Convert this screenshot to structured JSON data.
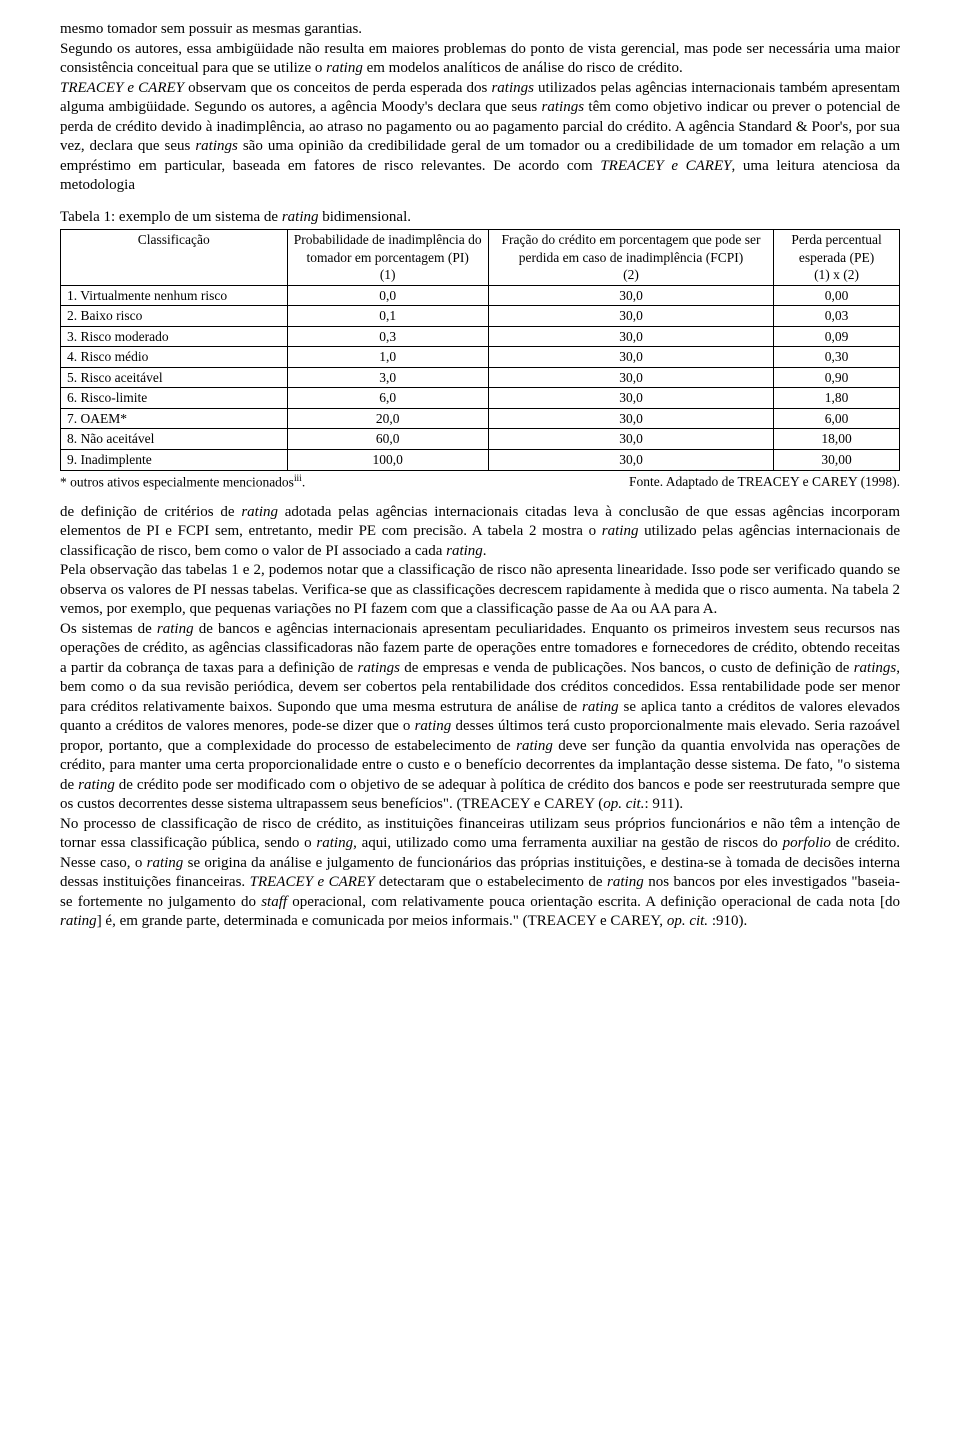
{
  "paragraphs": {
    "p1": "mesmo tomador sem possuir as mesmas garantias.",
    "p2_a": "Segundo os autores, essa ambigüidade não resulta em maiores problemas do ponto de vista gerencial, mas pode ser necessária uma maior consistência conceitual para que se utilize o ",
    "p2_b": "rating",
    "p2_c": " em modelos analíticos de análise do risco de crédito.",
    "p3_a": "TREACEY e CAREY",
    "p3_b": " observam que os conceitos de perda esperada dos ",
    "p3_c": "ratings",
    "p3_d": " utilizados pelas agências internacionais também apresentam alguma ambigüidade. Segundo os autores, a agência Moody's declara que seus ",
    "p3_e": "ratings",
    "p3_f": " têm como objetivo indicar ou prever o potencial de perda de crédito devido à inadimplência, ao atraso no pagamento ou ao pagamento parcial do crédito. A agência Standard & Poor's, por sua vez, declara que seus ",
    "p3_g": "ratings",
    "p3_h": " são uma opinião da credibilidade geral de um tomador ou a credibilidade de um tomador em relação a um empréstimo em particular, baseada em fatores de risco relevantes. De acordo com ",
    "p3_i": "TREACEY e CAREY",
    "p3_j": ", uma leitura atenciosa da metodologia"
  },
  "table": {
    "caption_a": "Tabela 1: exemplo de um sistema de ",
    "caption_b": "rating",
    "caption_c": " bidimensional.",
    "headers": {
      "h1": "Classificação",
      "h2": "Probabilidade de inadimplência do tomador em porcentagem (PI)",
      "h2b": "(1)",
      "h3": "Fração do crédito em porcentagem que pode ser perdida em caso de inadimplência (FCPI)",
      "h3b": "(2)",
      "h4": "Perda percentual esperada (PE)",
      "h4b": "(1) x (2)"
    },
    "rows": [
      {
        "c": "1. Virtualmente nenhum risco",
        "pi": "0,0",
        "fcpi": "30,0",
        "pe": "0,00"
      },
      {
        "c": "2. Baixo risco",
        "pi": "0,1",
        "fcpi": "30,0",
        "pe": "0,03"
      },
      {
        "c": "3. Risco moderado",
        "pi": "0,3",
        "fcpi": "30,0",
        "pe": "0,09"
      },
      {
        "c": "4. Risco médio",
        "pi": "1,0",
        "fcpi": "30,0",
        "pe": "0,30"
      },
      {
        "c": "5. Risco aceitável",
        "pi": "3,0",
        "fcpi": "30,0",
        "pe": "0,90"
      },
      {
        "c": "6. Risco-limite",
        "pi": "6,0",
        "fcpi": "30,0",
        "pe": "1,80"
      },
      {
        "c": "7. OAEM*",
        "pi": "20,0",
        "fcpi": "30,0",
        "pe": "6,00"
      },
      {
        "c": "8. Não aceitável",
        "pi": "60,0",
        "fcpi": "30,0",
        "pe": "18,00"
      },
      {
        "c": "9. Inadimplente",
        "pi": "100,0",
        "fcpi": "30,0",
        "pe": "30,00"
      }
    ],
    "footnote_left": "* outros ativos especialmente mencionados",
    "footnote_left_sup": "iii",
    "footnote_left_end": ".",
    "footnote_right": "Fonte. Adaptado de TREACEY e CAREY (1998)."
  },
  "paragraphs2": {
    "p4_a": "de definição de critérios de ",
    "p4_b": "rating",
    "p4_c": " adotada pelas agências internacionais citadas leva à conclusão de que essas agências incorporam elementos de PI e FCPI sem, entretanto, medir PE com precisão. A tabela 2 mostra o ",
    "p4_d": "rating",
    "p4_e": " utilizado pelas agências internacionais de classificação de risco, bem como o valor de PI associado a cada ",
    "p4_f": "rating",
    "p4_g": ".",
    "p5": "Pela observação das tabelas 1 e 2, podemos notar que a classificação de risco não apresenta linearidade. Isso pode ser verificado quando se observa os valores de PI nessas tabelas. Verifica-se que as classificações decrescem rapidamente à medida que o risco aumenta. Na tabela 2 vemos, por exemplo, que pequenas variações no PI fazem com que a classificação passe de Aa ou AA para A.",
    "p6_a": "Os sistemas de ",
    "p6_b": "rating",
    "p6_c": " de bancos e agências internacionais apresentam peculiaridades. Enquanto os primeiros investem seus recursos nas operações de crédito, as agências classificadoras não fazem parte de operações entre tomadores e fornecedores de crédito, obtendo receitas a partir da cobrança de taxas para a definição de ",
    "p6_d": "ratings",
    "p6_e": " de empresas e venda de publicações. Nos bancos, o custo de definição de ",
    "p6_f": "ratings",
    "p6_g": ", bem como o da sua revisão periódica, devem ser cobertos pela rentabilidade dos créditos concedidos. Essa rentabilidade pode ser menor para créditos relativamente baixos. Supondo que uma mesma estrutura de análise de ",
    "p6_h": "rating",
    "p6_i": " se aplica tanto a créditos de valores elevados quanto a créditos de valores menores, pode-se dizer que o ",
    "p6_j": "rating",
    "p6_k": " desses últimos terá custo proporcionalmente mais elevado. Seria razoável propor, portanto, que a complexidade do processo de estabelecimento de ",
    "p6_l": "rating",
    "p6_m": " deve ser função da quantia envolvida nas operações de crédito, para manter uma certa proporcionalidade entre o custo e o benefício decorrentes da implantação desse sistema. De fato, \"o sistema de ",
    "p6_n": "rating",
    "p6_o": " de crédito pode ser modificado com o objetivo de se adequar à política de crédito dos bancos e pode ser reestruturada sempre que os custos decorrentes desse sistema ultrapassem seus benefícios\". (TREACEY e CAREY (",
    "p6_p": "op. cit.",
    "p6_q": ": 911).",
    "p7_a": "No processo de classificação de risco de crédito, as instituições financeiras utilizam seus próprios funcionários e não têm a intenção de tornar essa classificação pública, sendo o ",
    "p7_b": "rating",
    "p7_c": ", aqui, utilizado como uma ferramenta auxiliar na gestão de riscos do ",
    "p7_d": "porfolio",
    "p7_e": " de crédito. Nesse caso, o ",
    "p7_f": "rating",
    "p7_g": " se origina da análise e julgamento de funcionários das próprias instituições, e destina-se à tomada de decisões interna dessas instituições financeiras. ",
    "p7_h": "TREACEY e CAREY",
    "p7_i": " detectaram que o estabelecimento de ",
    "p7_j": "rating",
    "p7_k": " nos bancos por eles investigados \"baseia-se fortemente no julgamento do ",
    "p7_l": "staff",
    "p7_m": " operacional, com relativamente pouca orientação escrita. A definição operacional de cada nota [do ",
    "p7_n": "rating",
    "p7_o": "] é, em grande parte, determinada e comunicada por meios informais.\" (TREACEY e CAREY, ",
    "p7_p": "op. cit.",
    "p7_q": " :910)."
  }
}
